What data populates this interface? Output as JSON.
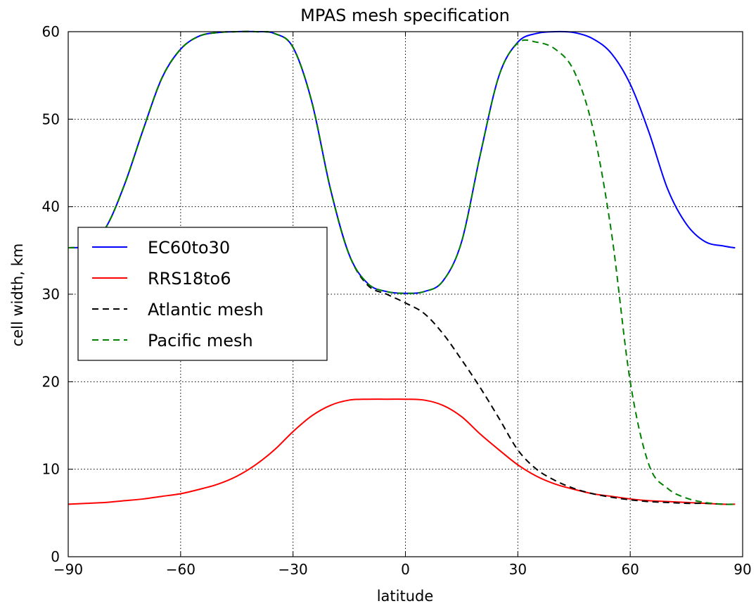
{
  "chart_data": {
    "type": "line",
    "title": "MPAS mesh specification",
    "xlabel": "latitude",
    "ylabel": "cell width, km",
    "xlim": [
      -90,
      90
    ],
    "ylim": [
      0,
      60
    ],
    "xticks": [
      -90,
      -60,
      -30,
      0,
      30,
      60,
      90
    ],
    "xtick_labels": [
      "−90",
      "−60",
      "−30",
      "0",
      "30",
      "60",
      "90"
    ],
    "yticks": [
      0,
      10,
      20,
      30,
      40,
      50,
      60
    ],
    "ytick_labels": [
      "0",
      "10",
      "20",
      "30",
      "40",
      "50",
      "60"
    ],
    "grid": true,
    "legend_position": "center-left",
    "x": [
      -90,
      -85,
      -80,
      -75,
      -70,
      -65,
      -60,
      -55,
      -50,
      -45,
      -40,
      -35,
      -30,
      -25,
      -20,
      -15,
      -10,
      -5,
      0,
      5,
      10,
      15,
      20,
      25,
      30,
      35,
      40,
      45,
      50,
      55,
      60,
      65,
      70,
      75,
      80,
      85,
      88
    ],
    "series": [
      {
        "name": "EC60to30",
        "color": "#0000ff",
        "dash": "solid",
        "values": [
          35.3,
          35.6,
          37.6,
          42.5,
          48.8,
          54.7,
          58.0,
          59.5,
          59.9,
          60.0,
          60.0,
          59.8,
          58.2,
          52.0,
          42.0,
          34.5,
          31.2,
          30.3,
          30.1,
          30.3,
          31.5,
          36.0,
          46.0,
          55.0,
          58.8,
          59.8,
          60.0,
          59.9,
          59.2,
          57.5,
          54.0,
          48.5,
          42.0,
          38.0,
          36.0,
          35.5,
          35.3
        ]
      },
      {
        "name": "RRS18to6",
        "color": "#ff0000",
        "dash": "solid",
        "values": [
          6.0,
          6.1,
          6.2,
          6.4,
          6.6,
          6.9,
          7.2,
          7.7,
          8.3,
          9.2,
          10.5,
          12.2,
          14.3,
          16.1,
          17.3,
          17.9,
          18.0,
          18.0,
          18.0,
          17.9,
          17.3,
          16.0,
          14.0,
          12.2,
          10.5,
          9.2,
          8.3,
          7.7,
          7.2,
          6.9,
          6.6,
          6.4,
          6.3,
          6.2,
          6.1,
          6.0,
          6.0
        ]
      },
      {
        "name": "Atlantic mesh",
        "color": "#000000",
        "dash": "dashed",
        "values": [
          35.3,
          35.6,
          37.6,
          42.5,
          48.8,
          54.7,
          58.0,
          59.5,
          59.9,
          60.0,
          60.0,
          59.8,
          58.2,
          52.0,
          42.0,
          34.5,
          31.0,
          30.0,
          29.0,
          27.8,
          25.5,
          22.5,
          19.3,
          15.8,
          12.2,
          10.0,
          8.7,
          7.8,
          7.2,
          6.8,
          6.5,
          6.3,
          6.2,
          6.1,
          6.1,
          6.0,
          6.0
        ]
      },
      {
        "name": "Pacific mesh",
        "color": "#008000",
        "dash": "dashed",
        "values": [
          35.3,
          35.6,
          37.6,
          42.5,
          48.8,
          54.7,
          58.0,
          59.5,
          59.9,
          60.0,
          60.0,
          59.8,
          58.2,
          52.0,
          42.0,
          34.5,
          31.2,
          30.3,
          30.1,
          30.3,
          31.5,
          36.0,
          46.0,
          55.0,
          58.7,
          58.8,
          58.0,
          55.5,
          49.0,
          37.0,
          20.0,
          10.5,
          7.8,
          6.7,
          6.2,
          6.0,
          6.0
        ]
      }
    ]
  }
}
